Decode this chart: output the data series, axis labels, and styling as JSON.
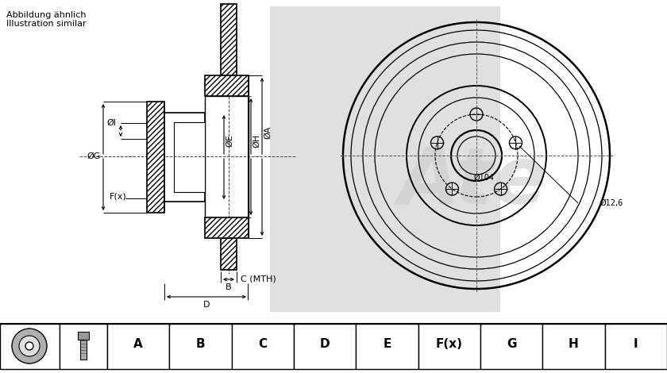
{
  "bg_color": "#ffffff",
  "line_color": "#000000",
  "title_text1": "Abbildung ähnlich",
  "title_text2": "Illustration similar",
  "label_OA": "ØA",
  "label_OE": "ØE",
  "label_OH": "ØH",
  "label_OI": "ØI",
  "label_OG": "ØG",
  "label_Fx": "F(x)",
  "label_B": "B",
  "label_C": "C (MTH)",
  "label_D": "D",
  "label_dia12": "Ø12,6",
  "label_dia104": "Ø104",
  "footer_labels": [
    "A",
    "B",
    "C",
    "D",
    "E",
    "F(x)",
    "G",
    "H",
    "I"
  ],
  "watermark": "Ate"
}
